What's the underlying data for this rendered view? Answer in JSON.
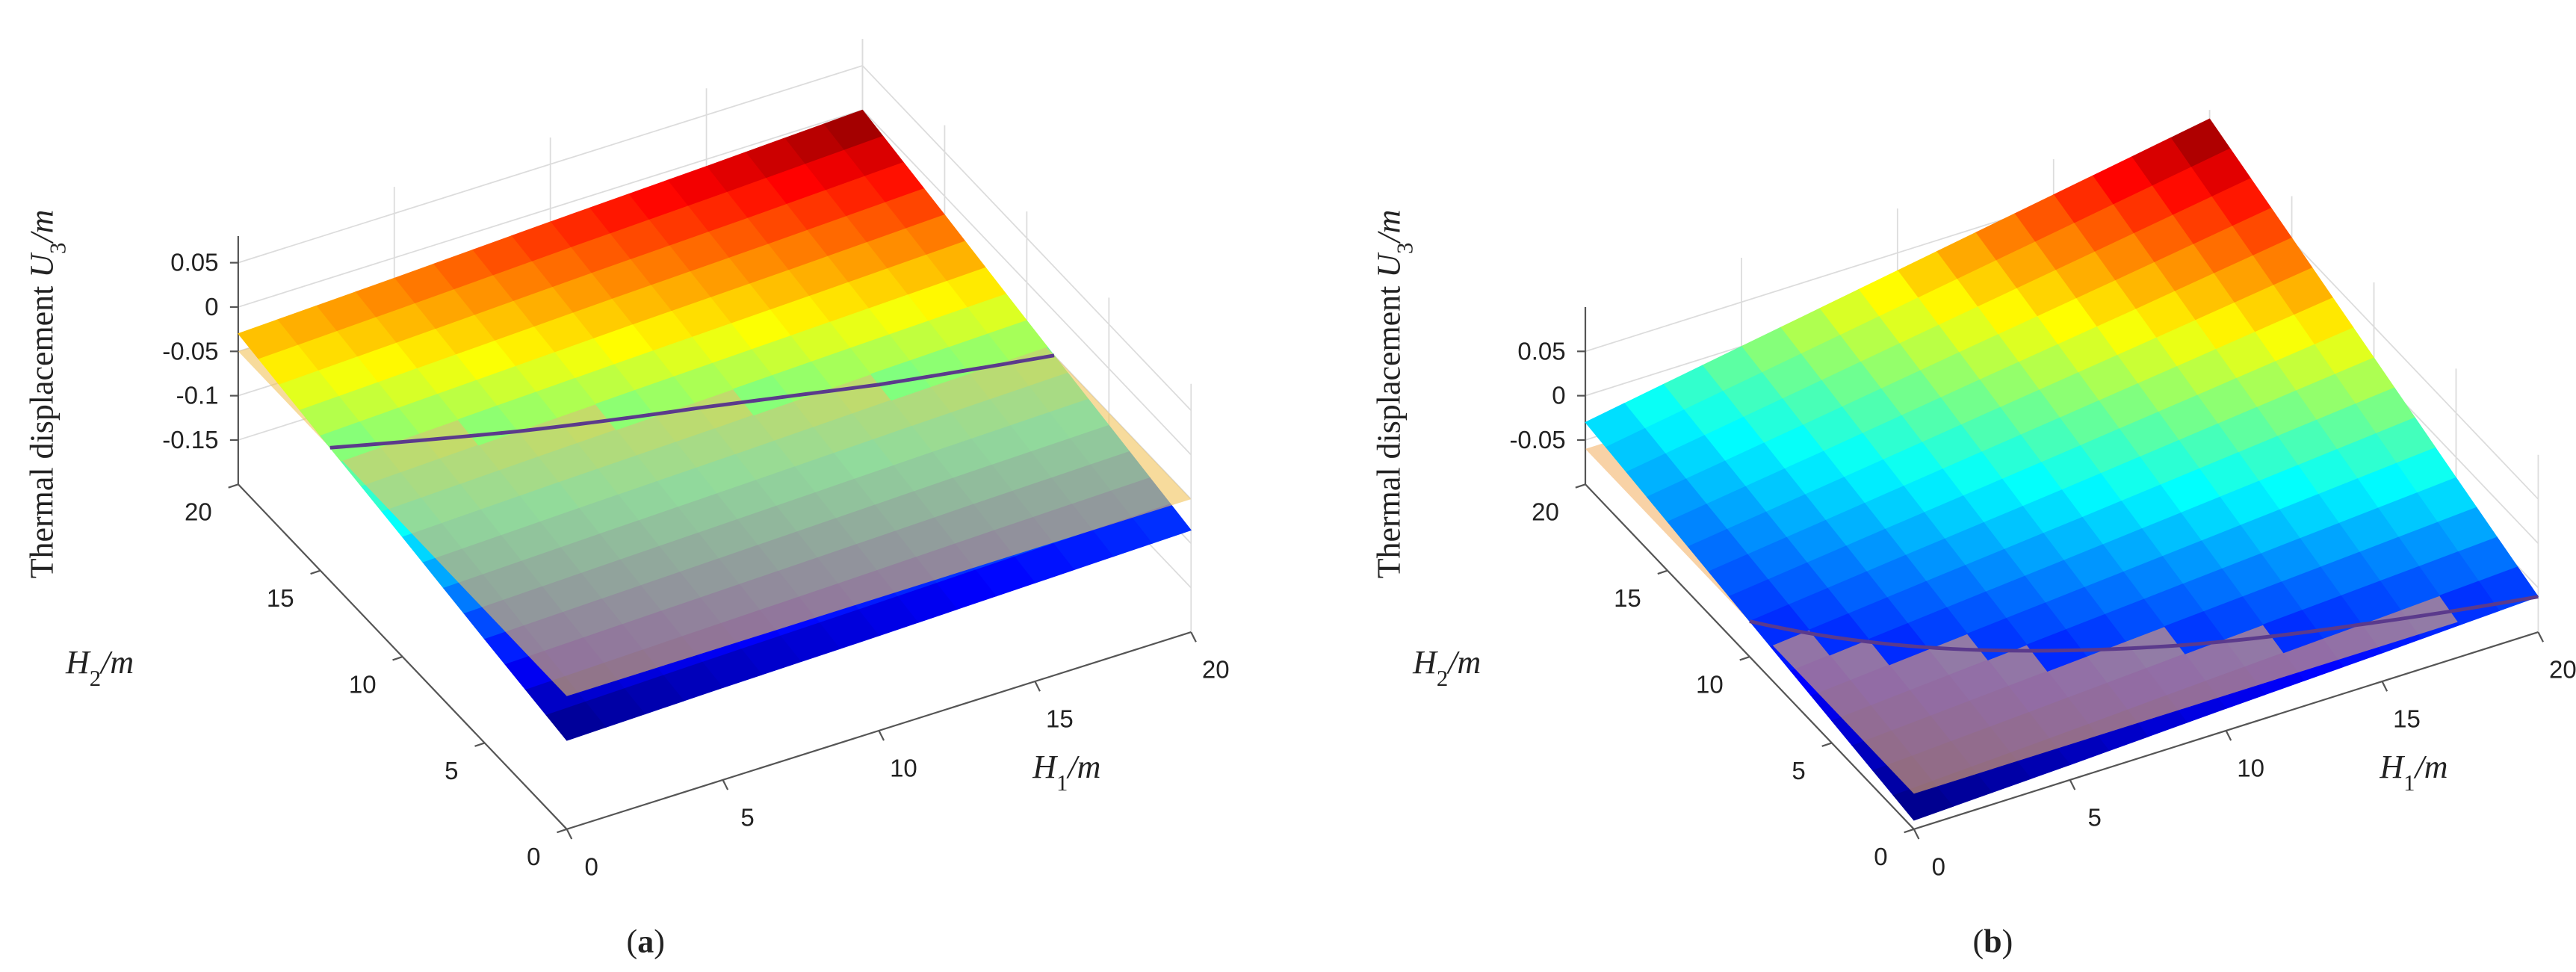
{
  "chart_data": [
    {
      "type": "surface",
      "colormap": "jet",
      "x": [
        0,
        5,
        10,
        15,
        20
      ],
      "y": [
        0,
        5,
        10,
        15,
        20
      ],
      "z": [
        [
          -0.1,
          -0.096,
          -0.093,
          -0.089,
          -0.085
        ],
        [
          -0.083,
          -0.078,
          -0.073,
          -0.068,
          -0.064
        ],
        [
          -0.065,
          -0.059,
          -0.054,
          -0.048,
          -0.043
        ],
        [
          -0.048,
          -0.041,
          -0.034,
          -0.028,
          -0.021
        ],
        [
          -0.03,
          -0.023,
          -0.015,
          -0.008,
          0
        ]
      ],
      "plane": {
        "z": -0.05,
        "color": "#f2c35a"
      },
      "curve_color": "#5b3a8c",
      "xlim": [
        0,
        20
      ],
      "ylim": [
        0,
        20
      ],
      "zlim": [
        -0.2,
        0.08
      ],
      "xticks": [
        0,
        5,
        10,
        15,
        20
      ],
      "yticks": [
        0,
        5,
        10,
        15,
        20
      ],
      "zticks": [
        -0.15,
        -0.1,
        -0.05,
        0,
        0.05
      ],
      "grid": true,
      "xlabel": {
        "symbol": "H",
        "sub": "1",
        "unit": "/m"
      },
      "ylabel": {
        "symbol": "H",
        "sub": "2",
        "unit": "/m"
      },
      "zlabel": {
        "text": "Thermal displacement ",
        "symbol": "U",
        "sub": "3",
        "unit": "/m"
      },
      "panel_label": {
        "open": "(",
        "letter": "a",
        "close": ")"
      }
    },
    {
      "type": "surface",
      "colormap": "jet",
      "x": [
        0,
        5,
        10,
        15,
        20
      ],
      "y": [
        0,
        5,
        10,
        15,
        20
      ],
      "z": [
        [
          -0.09,
          -0.083,
          -0.075,
          -0.068,
          -0.06
        ],
        [
          -0.075,
          -0.062,
          -0.049,
          -0.036,
          -0.023
        ],
        [
          -0.06,
          -0.041,
          -0.023,
          -0.004,
          0.015
        ],
        [
          -0.045,
          -0.021,
          0.004,
          0.028,
          0.053
        ],
        [
          -0.03,
          0,
          0.03,
          0.06,
          0.09
        ]
      ],
      "plane": {
        "z": -0.06,
        "color": "#f4b46a"
      },
      "curve_color": "#5b3a8c",
      "xlim": [
        0,
        20
      ],
      "ylim": [
        0,
        20
      ],
      "zlim": [
        -0.1,
        0.1
      ],
      "xticks": [
        0,
        5,
        10,
        15,
        20
      ],
      "yticks": [
        0,
        5,
        10,
        15,
        20
      ],
      "zticks": [
        -0.05,
        0,
        0.05
      ],
      "grid": true,
      "xlabel": {
        "symbol": "H",
        "sub": "1",
        "unit": "/m"
      },
      "ylabel": {
        "symbol": "H",
        "sub": "2",
        "unit": "/m"
      },
      "zlabel": {
        "text": "Thermal displacement ",
        "symbol": "U",
        "sub": "3",
        "unit": "/m"
      },
      "panel_label": {
        "open": "(",
        "letter": "b",
        "close": ")"
      }
    }
  ]
}
